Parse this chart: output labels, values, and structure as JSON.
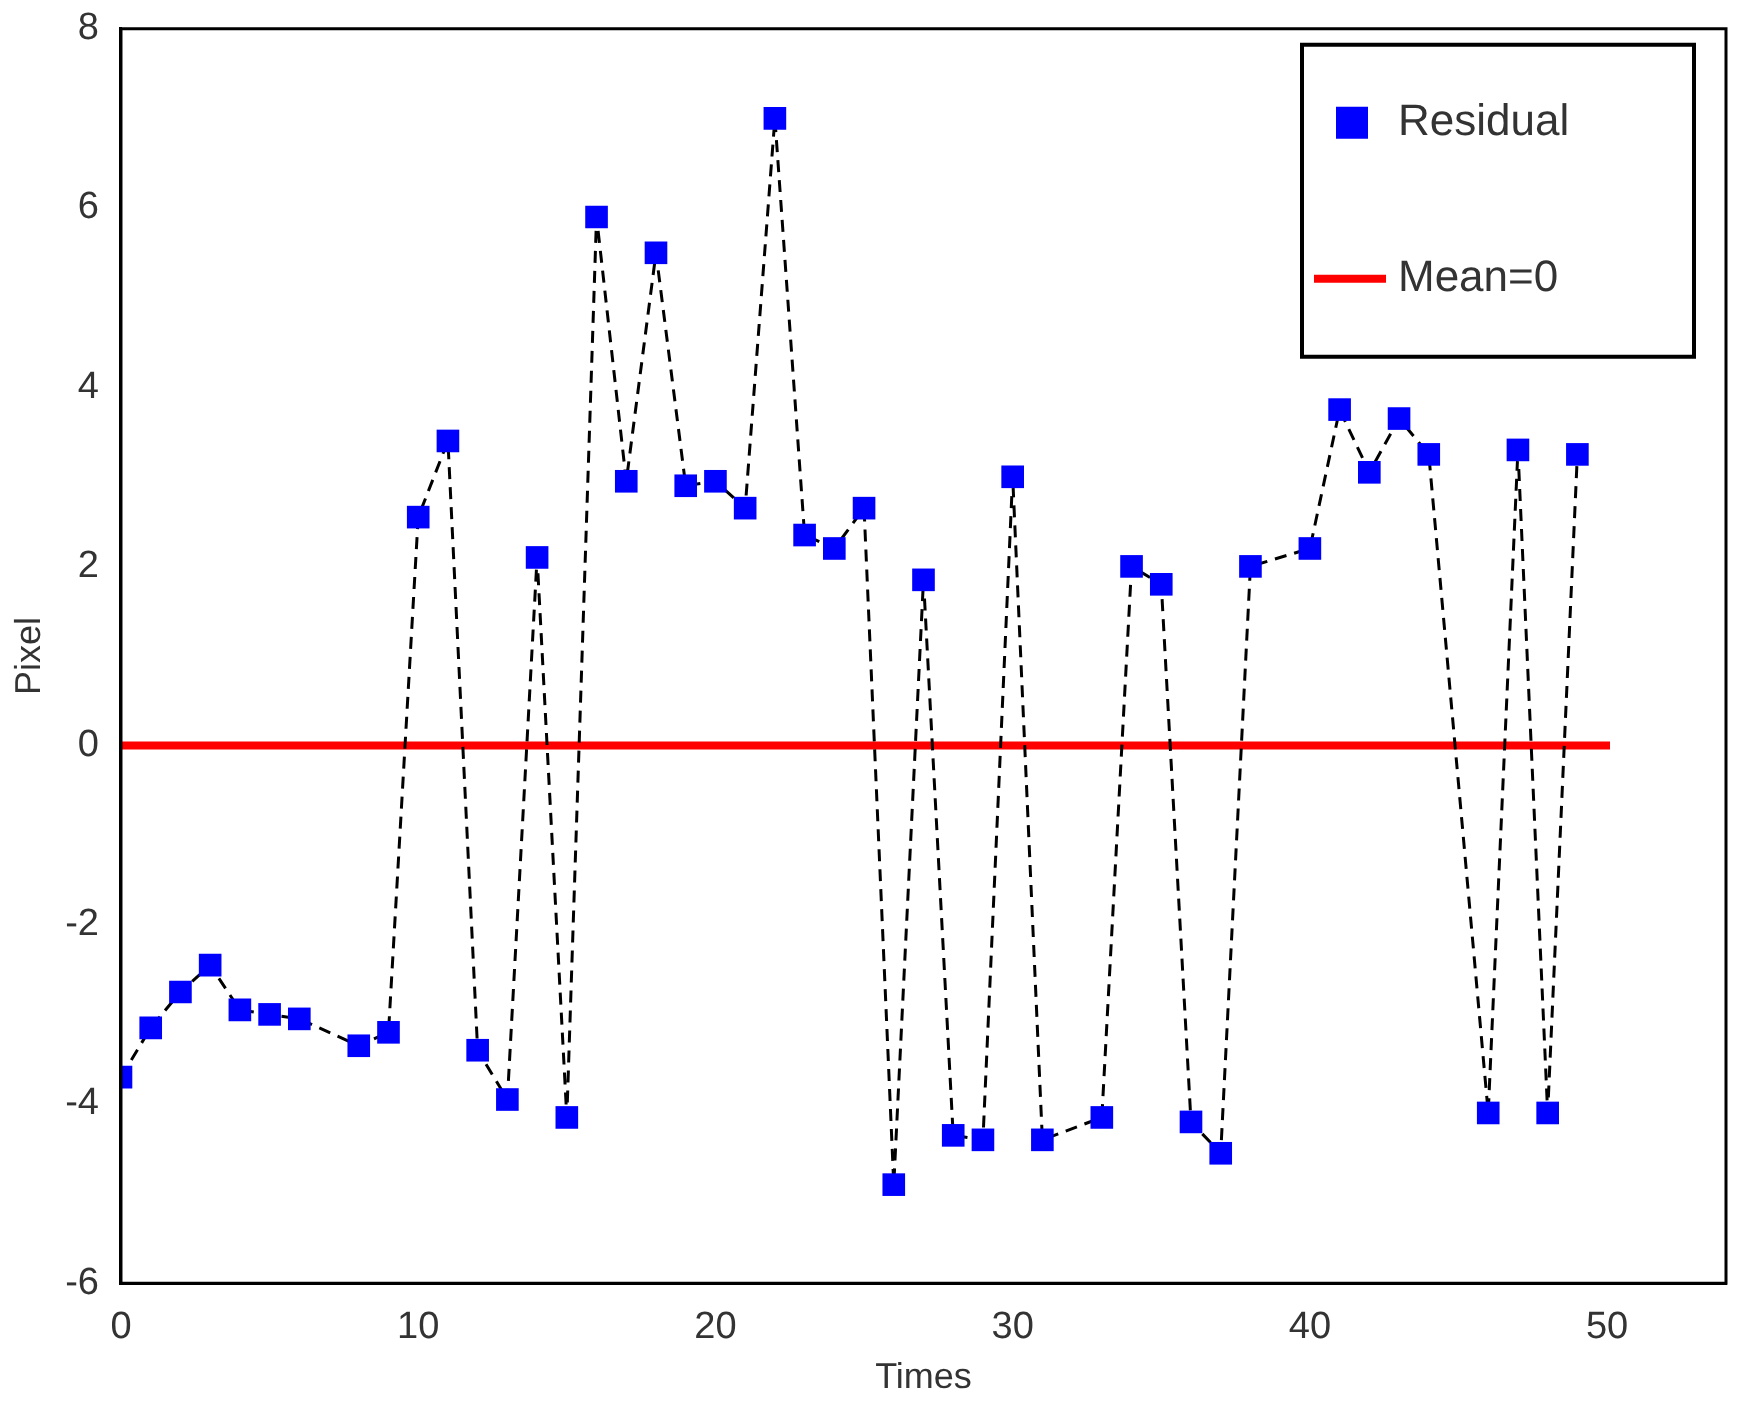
{
  "chart_data": {
    "type": "line",
    "xlabel": "Times",
    "ylabel": "Pixel",
    "xlim": [
      0,
      54
    ],
    "xticks": [
      0,
      10,
      20,
      30,
      40,
      50
    ],
    "ylim": [
      -6,
      8
    ],
    "yticks": [
      -6,
      -4,
      -2,
      0,
      2,
      4,
      6,
      8
    ],
    "grid": false,
    "legend": "top right",
    "marker": "square",
    "line_style": "dashed",
    "x": [
      0,
      1,
      2,
      3,
      4,
      5,
      6,
      8,
      9,
      10,
      11,
      12,
      13,
      14,
      15,
      16,
      17,
      18,
      19,
      20,
      21,
      22,
      23,
      24,
      25,
      26,
      27,
      28,
      29,
      30,
      31,
      33,
      34,
      35,
      36,
      37,
      38,
      40,
      41,
      42,
      43,
      44,
      46,
      47,
      48,
      49
    ],
    "series": [
      {
        "name": "Residual",
        "color": "#0000ff",
        "values": [
          -3.7,
          -3.15,
          -2.75,
          -2.45,
          -2.95,
          -3.0,
          -3.05,
          -3.35,
          -3.2,
          2.55,
          3.4,
          -3.4,
          -3.95,
          2.1,
          -4.15,
          5.9,
          2.95,
          5.5,
          2.9,
          2.95,
          2.65,
          7.0,
          2.35,
          2.2,
          2.65,
          -4.9,
          1.85,
          -4.35,
          -4.4,
          3.0,
          -4.4,
          -4.15,
          2.0,
          1.8,
          -4.2,
          -4.55,
          2.0,
          2.2,
          3.75,
          3.05,
          3.65,
          3.25,
          -4.1,
          3.3,
          -4.1,
          3.25
        ]
      }
    ],
    "ref_lines": [
      {
        "axis": "y",
        "value": 0,
        "label": "Mean=0",
        "color": "#ff0000"
      }
    ]
  }
}
